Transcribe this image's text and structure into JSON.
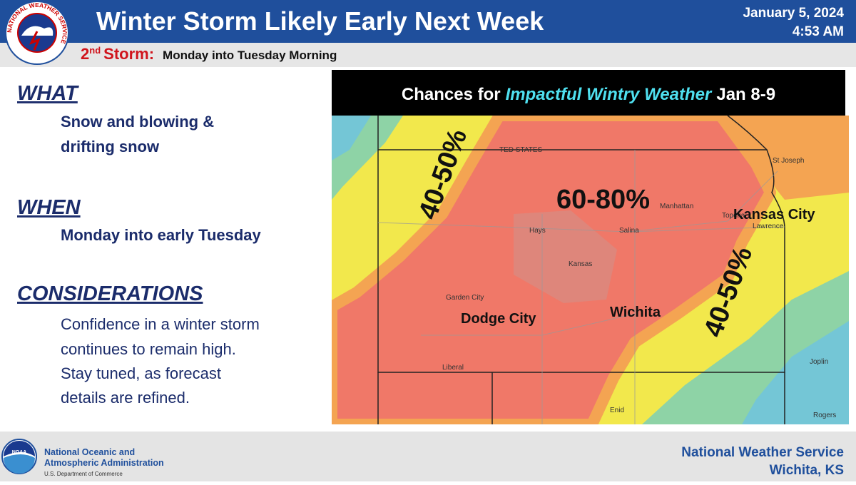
{
  "header": {
    "title": "Winter Storm Likely Early Next Week",
    "date": "January 5, 2024",
    "time": "4:53 AM",
    "logo_ring": "NATIONAL WEATHER SERVICE"
  },
  "subheader": {
    "storm_number": "2",
    "storm_suffix": "nd",
    "storm_label": "Storm:",
    "timing": "Monday into Tuesday Morning"
  },
  "sections": [
    {
      "heading": "WHAT",
      "lines": [
        "Snow and blowing &",
        "drifting snow"
      ]
    },
    {
      "heading": "WHEN",
      "lines": [
        "Monday into early Tuesday"
      ]
    },
    {
      "heading": "CONSIDERATIONS",
      "lines": [
        "Confidence in a winter storm",
        "continues to remain high.",
        "Stay tuned, as forecast",
        "details are refined."
      ]
    }
  ],
  "map": {
    "title_prefix": "Chances for",
    "title_highlight": "Impactful Wintry Weather",
    "title_suffix": "Jan 8-9",
    "probability_labels": [
      "40-50%",
      "60-80%",
      "40-50%"
    ],
    "city_labels": [
      "Dodge City",
      "Wichita",
      "Kansas City"
    ],
    "place_labels": [
      "TED STATES",
      "St Joseph",
      "Manhattan",
      "Topeka",
      "Lawrence",
      "Hays",
      "Salina",
      "Kansas",
      "Garden City",
      "Liberal",
      "Joplin",
      "Enid",
      "Rogers"
    ]
  },
  "footer": {
    "noaa_logo": "NOAA",
    "agency_line1": "National Oceanic and",
    "agency_line2": "Atmospheric Administration",
    "department": "U.S. Department of Commerce",
    "office_name": "National Weather Service",
    "office_location": "Wichita, KS"
  }
}
